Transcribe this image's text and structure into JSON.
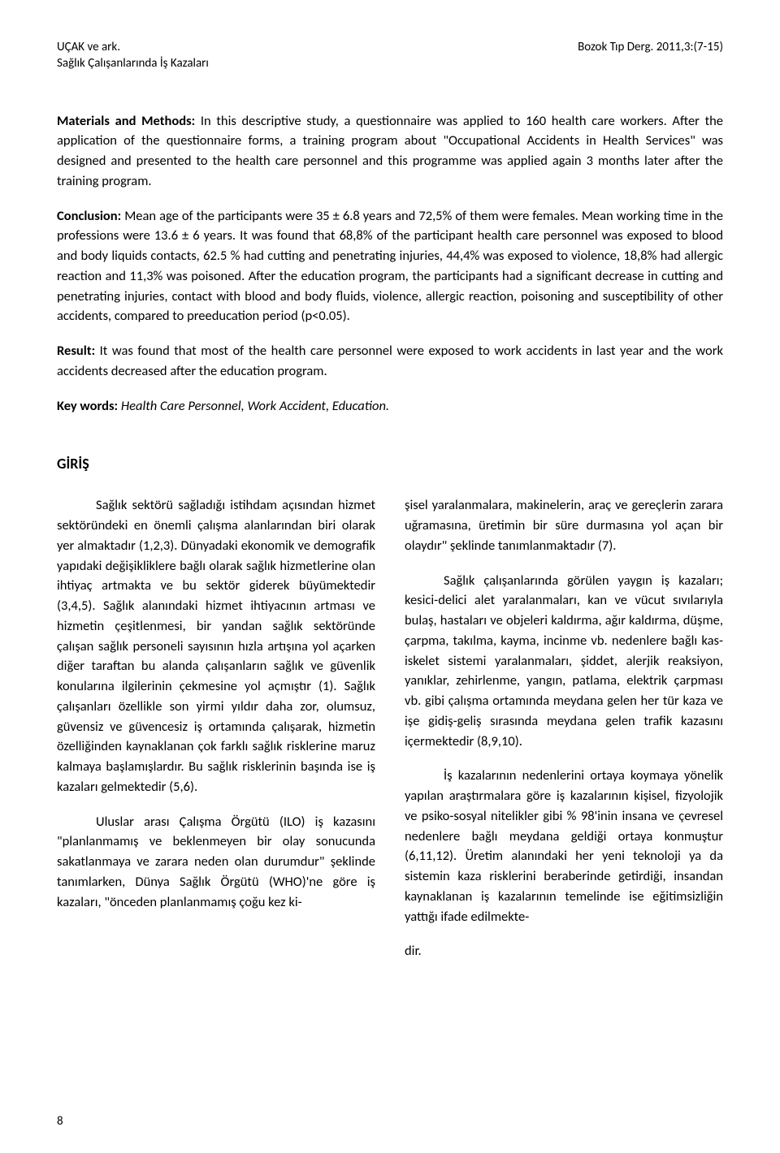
{
  "header": {
    "left_line1": "UÇAK ve ark.",
    "left_line2": "Sağlık Çalışanlarında İş Kazaları",
    "right_line1": "Bozok Tıp Derg. 2011,3:(7-15)"
  },
  "abstract": {
    "methods_label": "Materials and Methods:",
    "methods_text": " In this descriptive study, a questionnaire was applied to 160 health care workers. After the application of the questionnaire forms, a training program about \"Occupational Accidents in Health Services\" was designed and presented to the health care personnel and this programme was applied again 3 months later after the training program.",
    "conclusion_label": "Conclusion:",
    "conclusion_text": " Mean age of the participants were 35 ± 6.8 years and 72,5% of them were females. Mean working time in the professions were 13.6 ± 6 years. It was found that 68,8% of the participant health care personnel was exposed to blood and body liquids contacts, 62.5 % had cutting and penetrating injuries, 44,4% was exposed to violence, 18,8% had allergic reaction and 11,3% was poisoned. After the education program, the participants had a significant decrease in cutting and penetrating injuries, contact with blood and body fluids, violence, allergic reaction, poisoning and susceptibility of other accidents, compared to preeducation period (p<0.05).",
    "result_label": "Result:",
    "result_text": " It was found that most of the health care personnel were exposed to work accidents in last year and the work accidents decreased after the education program.",
    "keywords_label": "Key words:",
    "keywords_text": " Health Care Personnel, Work Accident, Education."
  },
  "section": {
    "title": "GİRİŞ"
  },
  "body": {
    "col1_p1": "Sağlık sektörü sağladığı istihdam açısından hizmet sektöründeki en önemli çalışma alanlarından biri olarak yer almaktadır (1,2,3). Dünyadaki ekonomik ve demografik yapıdaki değişikliklere bağlı olarak sağlık hizmetlerine olan ihtiyaç artmakta ve bu sektör giderek büyümektedir (3,4,5). Sağlık alanındaki hizmet ihtiyacının artması ve hizmetin çeşitlenmesi, bir yandan sağlık sektöründe çalışan sağlık personeli sayısının hızla artışına yol açarken diğer taraftan bu alanda çalışanların sağlık ve güvenlik konularına ilgilerinin çekmesine yol açmıştır (1). Sağlık çalışanları özellikle son yirmi yıldır daha zor, olumsuz, güvensiz ve güvencesiz iş ortamında çalışarak, hizmetin özelliğinden kaynaklanan çok farklı sağlık risklerine maruz kalmaya başlamışlardır. Bu sağlık risklerinin başında ise iş kazaları gelmektedir (5,6).",
    "col1_p2_start": "Uluslar arası Çalışma Örgütü (ILO) iş kazasını \"planlanmamış ve beklenmeyen bir olay sonucunda sakatlanmaya ve zarara neden olan durumdur\" şeklinde tanımlarken, Dünya Sağlık Örgütü (WHO)'ne göre iş kazaları, \"önceden planlanmamış çoğu kez ki-",
    "col2_p1_cont": "şisel yaralanmalara, makinelerin, araç ve gereçlerin zarara uğramasına, üretimin bir süre durmasına yol açan bir olaydır\" şeklinde tanımlanmaktadır (7).",
    "col2_p2": "Sağlık çalışanlarında görülen yaygın iş kazaları; kesici-delici alet yaralanmaları, kan ve vücut sıvılarıyla bulaş, hastaları ve objeleri kaldırma, ağır kaldırma, düşme, çarpma, takılma, kayma, incinme vb. nedenlere bağlı kas-iskelet sistemi yaralanmaları, şiddet, alerjik reaksiyon, yanıklar, zehirlenme, yangın, patlama, elektrik çarpması vb. gibi çalışma ortamında meydana gelen her tür kaza ve işe gidiş-geliş sırasında meydana gelen trafik kazasını içermektedir (8,9,10).",
    "col2_p3": "İş kazalarının nedenlerini ortaya koymaya yönelik yapılan araştırmalara göre iş kazalarının kişisel, fizyolojik ve psiko-sosyal nitelikler gibi % 98'inin insana ve çevresel nedenlere bağlı meydana geldiği ortaya konmuştur (6,11,12). Üretim alanındaki her yeni teknoloji ya da sistemin kaza risklerini beraberinde getirdiği, insandan kaynaklanan iş kazalarının temelinde ise eğitimsizliğin yattığı ifade edilmekte-",
    "col2_p3_end": "dir."
  },
  "page_number": "8"
}
